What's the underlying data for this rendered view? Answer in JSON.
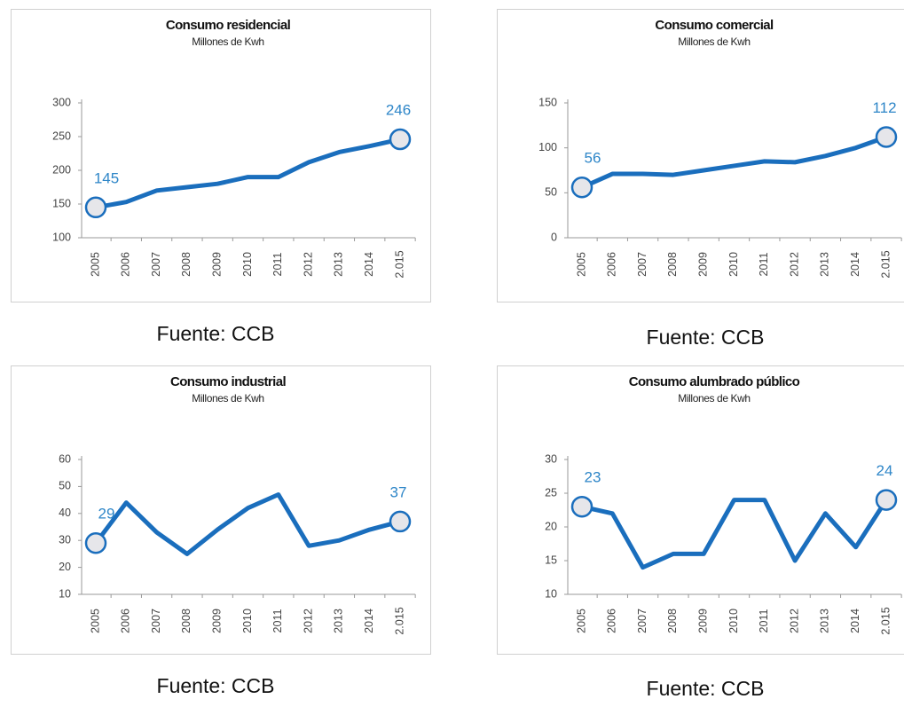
{
  "chart_data": [
    {
      "type": "line",
      "title": "Consumo residencial",
      "subtitle": "Millones de Kwh",
      "source": "Fuente: CCB",
      "categories": [
        "2005",
        "2006",
        "2007",
        "2008",
        "2009",
        "2010",
        "2011",
        "2012",
        "2013",
        "2014",
        "2.015"
      ],
      "series": [
        {
          "color": "#1a6ebd",
          "values": [
            145,
            153,
            170,
            175,
            180,
            190,
            190,
            212,
            227,
            236,
            246
          ]
        }
      ],
      "ylim": [
        100,
        300
      ],
      "yticks": [
        100,
        150,
        200,
        250,
        300
      ]
    },
    {
      "type": "line",
      "title": "Consumo comercial",
      "subtitle": "Millones de Kwh",
      "source": "Fuente: CCB",
      "categories": [
        "2005",
        "2006",
        "2007",
        "2008",
        "2009",
        "2010",
        "2011",
        "2012",
        "2013",
        "2014",
        "2.015"
      ],
      "series": [
        {
          "color": "#1a6ebd",
          "values": [
            56,
            71,
            71,
            70,
            75,
            80,
            85,
            84,
            91,
            100,
            112
          ]
        }
      ],
      "ylim": [
        0,
        150
      ],
      "yticks": [
        0,
        50,
        100,
        150
      ]
    },
    {
      "type": "line",
      "title": "Consumo industrial",
      "subtitle": "Millones de Kwh",
      "source": "Fuente: CCB",
      "categories": [
        "2005",
        "2006",
        "2007",
        "2008",
        "2009",
        "2010",
        "2011",
        "2012",
        "2013",
        "2014",
        "2.015"
      ],
      "series": [
        {
          "color": "#1a6ebd",
          "values": [
            29,
            44,
            33,
            25,
            34,
            42,
            47,
            28,
            30,
            34,
            37
          ]
        }
      ],
      "ylim": [
        10,
        60
      ],
      "yticks": [
        10,
        20,
        30,
        40,
        50,
        60
      ]
    },
    {
      "type": "line",
      "title": "Consumo alumbrado público",
      "subtitle": "Millones de Kwh",
      "source": "Fuente: CCB",
      "categories": [
        "2005",
        "2006",
        "2007",
        "2008",
        "2009",
        "2010",
        "2011",
        "2012",
        "2013",
        "2014",
        "2.015"
      ],
      "series": [
        {
          "color": "#1a6ebd",
          "values": [
            23,
            22,
            14,
            16,
            16,
            24,
            24,
            15,
            22,
            17,
            24
          ]
        }
      ],
      "ylim": [
        10,
        30
      ],
      "yticks": [
        10,
        15,
        20,
        25,
        30
      ]
    }
  ]
}
